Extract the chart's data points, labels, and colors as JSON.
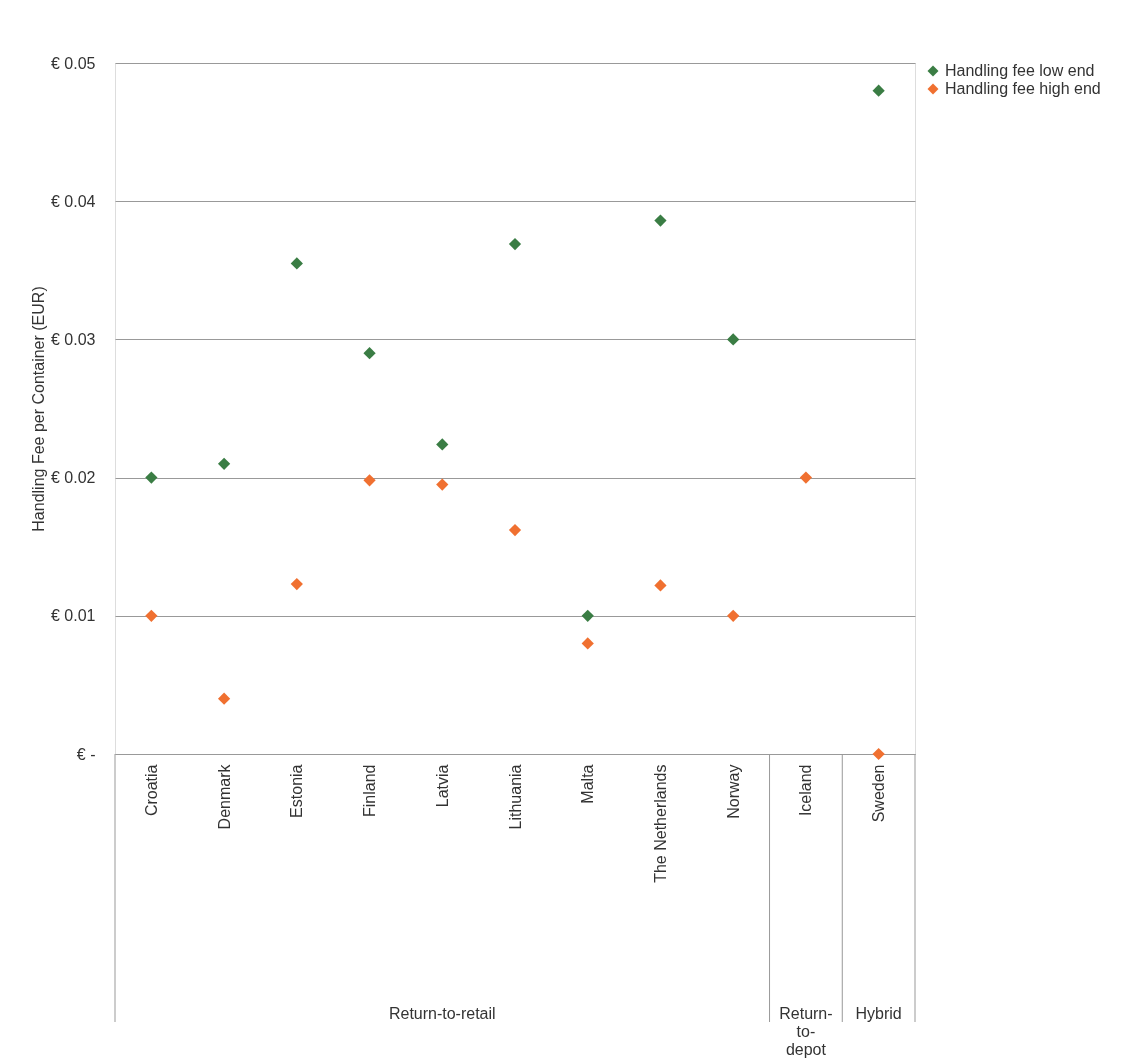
{
  "chart_data": {
    "type": "scatter",
    "ylabel": "Handling Fee per Container (EUR)",
    "categories": [
      "Croatia",
      "Denmark",
      "Estonia",
      "Finland",
      "Latvia",
      "Lithuania",
      "Malta",
      "The Netherlands",
      "Norway",
      "Iceland",
      "Sweden"
    ],
    "series": [
      {
        "name": "Handling fee low end",
        "color": "#3a7d44",
        "values": [
          0.02,
          0.021,
          0.0355,
          0.029,
          0.0224,
          0.0369,
          0.01,
          0.0386,
          0.03,
          null,
          0.048
        ]
      },
      {
        "name": "Handling fee high end",
        "color": "#f07030",
        "values": [
          0.01,
          0.004,
          0.0123,
          0.0198,
          0.0195,
          0.0162,
          0.008,
          0.0122,
          0.01,
          0.02,
          0
        ]
      }
    ],
    "ylim": [
      0,
      0.05
    ],
    "yticks": [
      {
        "value": 0,
        "label": "€ -"
      },
      {
        "value": 0.01,
        "label": "€ 0.01"
      },
      {
        "value": 0.02,
        "label": "€ 0.02"
      },
      {
        "value": 0.03,
        "label": "€ 0.03"
      },
      {
        "value": 0.04,
        "label": "€ 0.04"
      },
      {
        "value": 0.05,
        "label": "€ 0.05"
      }
    ],
    "grid": "y",
    "legend": "right",
    "marker": "diamond",
    "annotations": [
      "Return-to-retail",
      "Return-\nto-\ndepot",
      "Hybrid"
    ]
  }
}
